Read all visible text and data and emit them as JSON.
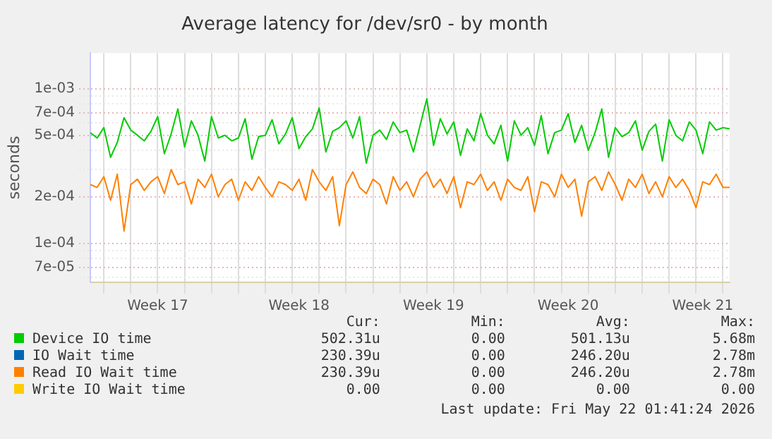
{
  "chart_data": {
    "type": "line",
    "title": "Average latency for /dev/sr0 - by month",
    "ylabel": "seconds",
    "categories": [
      null,
      null,
      null,
      null,
      null,
      null,
      null,
      null,
      null,
      null,
      "Week 17",
      null,
      null,
      null,
      null,
      null,
      null,
      null,
      null,
      null,
      null,
      null,
      null,
      null,
      null,
      null,
      null,
      null,
      null,
      null,
      null,
      "Week 18",
      null,
      null,
      null,
      null,
      null,
      null,
      null,
      null,
      null,
      null,
      null,
      null,
      null,
      null,
      null,
      null,
      null,
      null,
      null,
      "Week 19",
      null,
      null,
      null,
      null,
      null,
      null,
      null,
      null,
      null,
      null,
      null,
      null,
      null,
      null,
      null,
      null,
      null,
      null,
      null,
      "Week 20",
      null,
      null,
      null,
      null,
      null,
      null,
      null,
      null,
      null,
      null,
      null,
      null,
      null,
      null,
      null,
      null,
      null,
      null,
      null,
      "Week 21",
      null,
      null,
      null,
      null
    ],
    "series": [
      {
        "name": "Device IO time",
        "color": "#00cc00",
        "values": [
          0.00052,
          0.00048,
          0.00056,
          0.00036,
          0.00045,
          0.00065,
          0.00054,
          0.0005,
          0.00046,
          0.00053,
          0.00066,
          0.00038,
          0.00051,
          0.00074,
          0.00042,
          0.00062,
          0.0005,
          0.00034,
          0.00066,
          0.00048,
          0.0005,
          0.00046,
          0.00048,
          0.00064,
          0.00035,
          0.00049,
          0.0005,
          0.00063,
          0.00044,
          0.00051,
          0.00065,
          0.00041,
          0.00049,
          0.00055,
          0.00075,
          0.00039,
          0.00053,
          0.00056,
          0.00062,
          0.00048,
          0.00066,
          0.00033,
          0.0005,
          0.00054,
          0.00047,
          0.00061,
          0.00052,
          0.00054,
          0.00039,
          0.00058,
          0.00086,
          0.00043,
          0.00064,
          0.00051,
          0.00061,
          0.00037,
          0.00055,
          0.00046,
          0.00069,
          0.0005,
          0.00044,
          0.00058,
          0.00034,
          0.00062,
          0.0005,
          0.00056,
          0.00043,
          0.00067,
          0.00038,
          0.00052,
          0.00054,
          0.00069,
          0.00045,
          0.00058,
          0.0004,
          0.00052,
          0.00074,
          0.00036,
          0.00056,
          0.00049,
          0.00052,
          0.00062,
          0.0004,
          0.00053,
          0.00059,
          0.00034,
          0.00063,
          0.0005,
          0.00046,
          0.00061,
          0.00054,
          0.00038,
          0.00061,
          0.00054,
          0.00056,
          0.00055
        ]
      },
      {
        "name": "IO Wait time",
        "color": "#0066b3",
        "values": [
          null,
          null,
          null,
          null,
          null,
          null,
          null,
          null,
          null,
          null,
          null,
          null,
          null,
          null,
          null,
          null,
          null,
          null,
          null,
          null,
          null,
          null,
          null,
          null,
          null,
          null,
          null,
          null,
          null,
          null,
          null,
          null,
          null,
          null,
          null,
          null,
          null,
          null,
          null,
          null,
          null,
          null,
          null,
          null,
          null,
          null,
          null,
          null,
          null,
          null,
          null,
          null,
          null,
          null,
          null,
          null,
          null,
          null,
          null,
          null,
          null,
          null,
          null,
          null,
          null,
          null,
          null,
          null,
          null,
          null,
          null,
          null,
          null,
          null,
          null,
          null,
          null,
          null,
          null,
          null,
          null,
          null,
          null,
          null,
          null,
          null,
          null,
          null,
          null,
          null,
          null,
          null,
          null,
          null,
          null,
          null
        ]
      },
      {
        "name": "Read IO Wait time",
        "color": "#ff8000",
        "values": [
          0.00024,
          0.00023,
          0.00027,
          0.00019,
          0.00028,
          0.00012,
          0.00024,
          0.00026,
          0.00022,
          0.00025,
          0.00027,
          0.00021,
          0.0003,
          0.00024,
          0.00025,
          0.00018,
          0.00026,
          0.00023,
          0.00028,
          0.0002,
          0.00024,
          0.00026,
          0.00019,
          0.00025,
          0.00022,
          0.00027,
          0.00023,
          0.0002,
          0.00025,
          0.00024,
          0.00022,
          0.00026,
          0.00019,
          0.0003,
          0.00025,
          0.00022,
          0.00027,
          0.00013,
          0.00024,
          0.00029,
          0.00023,
          0.00021,
          0.00026,
          0.00024,
          0.00018,
          0.00027,
          0.00022,
          0.00025,
          0.0002,
          0.00026,
          0.00029,
          0.00023,
          0.00026,
          0.00021,
          0.00027,
          0.00017,
          0.00025,
          0.00024,
          0.00028,
          0.00022,
          0.00025,
          0.00019,
          0.00026,
          0.00023,
          0.00022,
          0.00027,
          0.00016,
          0.00025,
          0.00024,
          0.0002,
          0.00028,
          0.00023,
          0.00026,
          0.00015,
          0.00025,
          0.00027,
          0.00022,
          0.00029,
          0.00024,
          0.00019,
          0.00026,
          0.00023,
          0.00028,
          0.00021,
          0.00025,
          0.0002,
          0.00027,
          0.00023,
          0.00026,
          0.00022,
          0.00017,
          0.00025,
          0.00024,
          0.00028,
          0.00023,
          0.00023
        ]
      },
      {
        "name": "Write IO Wait time",
        "color": "#ffcc00",
        "values": [
          null,
          null,
          null,
          null,
          null,
          null,
          null,
          null,
          null,
          null,
          null,
          null,
          null,
          null,
          null,
          null,
          null,
          null,
          null,
          null,
          null,
          null,
          null,
          null,
          null,
          null,
          null,
          null,
          null,
          null,
          null,
          null,
          null,
          null,
          null,
          null,
          null,
          null,
          null,
          null,
          null,
          null,
          null,
          null,
          null,
          null,
          null,
          null,
          null,
          null,
          null,
          null,
          null,
          null,
          null,
          null,
          null,
          null,
          null,
          null,
          null,
          null,
          null,
          null,
          null,
          null,
          null,
          null,
          null,
          null,
          null,
          null,
          null,
          null,
          null,
          null,
          null,
          null,
          null,
          null,
          null,
          null,
          null,
          null,
          null,
          null,
          null,
          null,
          null,
          null,
          null,
          null,
          null,
          null,
          null,
          null
        ]
      }
    ],
    "log": "y",
    "ylim": [
      5.6e-05,
      0.0017
    ],
    "yticks": [
      {
        "value": 6e-05,
        "label": null
      },
      {
        "value": 7e-05,
        "label": "7e-05"
      },
      {
        "value": 8e-05,
        "label": null
      },
      {
        "value": 9e-05,
        "label": null
      },
      {
        "value": 0.0001,
        "label": "1e-04"
      },
      {
        "value": 0.0002,
        "label": "2e-04"
      },
      {
        "value": 0.0003,
        "label": null
      },
      {
        "value": 0.0004,
        "label": null
      },
      {
        "value": 0.0005,
        "label": "5e-04"
      },
      {
        "value": 0.0006,
        "label": null
      },
      {
        "value": 0.0007,
        "label": "7e-04"
      },
      {
        "value": 0.0008,
        "label": null
      },
      {
        "value": 0.0009,
        "label": null
      },
      {
        "value": 0.001,
        "label": "1e-03"
      }
    ],
    "grid": true,
    "legend": "bottom",
    "annotations": [
      "Cur:",
      "Min:",
      "Avg:",
      "Max:",
      "502.31u",
      "0.00",
      "501.13u",
      "5.68m",
      "230.39u",
      "0.00",
      "246.20u",
      "2.78m",
      "230.39u",
      "0.00",
      "246.20u",
      "2.78m",
      "0.00",
      "0.00",
      "0.00",
      "0.00",
      "Last update: Fri May 22 01:41:24 2026"
    ]
  }
}
